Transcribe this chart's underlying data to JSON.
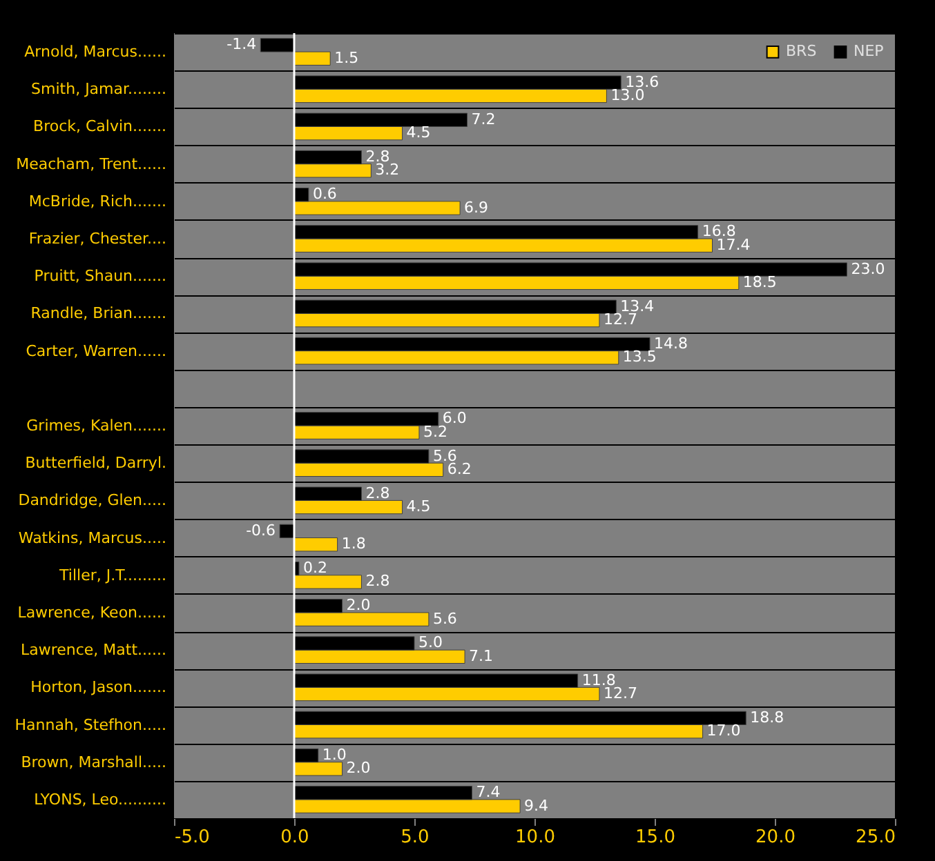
{
  "chart_data": {
    "type": "bar",
    "orientation": "horizontal",
    "categories": [
      "Arnold, Marcus......",
      "Smith, Jamar........",
      "Brock, Calvin.......",
      "Meacham, Trent......",
      "McBride, Rich.......",
      "Frazier, Chester....",
      "Pruitt, Shaun.......",
      "Randle, Brian.......",
      "Carter, Warren......",
      null,
      "Grimes, Kalen.......",
      "Butterfield, Darryl.",
      "Dandridge, Glen.....",
      "Watkins, Marcus.....",
      "Tiller, J.T.........",
      "Lawrence, Keon......",
      "Lawrence, Matt......",
      "Horton, Jason.......",
      "Hannah, Stefhon.....",
      "Brown, Marshall.....",
      "LYONS, Leo.........."
    ],
    "series": [
      {
        "name": "BRS",
        "color": "#ffcc00",
        "values": [
          1.5,
          13.0,
          4.5,
          3.2,
          6.9,
          17.4,
          18.5,
          12.7,
          13.5,
          null,
          5.2,
          6.2,
          4.5,
          1.8,
          2.8,
          5.6,
          7.1,
          12.7,
          17.0,
          2.0,
          9.4
        ],
        "value_labels": [
          "1.5",
          "13.0",
          "4.5",
          "3.2",
          "6.9",
          "17.4",
          "18.5",
          "12.7",
          "13.5",
          null,
          "5.2",
          "6.2",
          "4.5",
          "1.8",
          "2.8",
          "5.6",
          "7.1",
          "12.7",
          "17.0",
          "2.0",
          "9.4"
        ]
      },
      {
        "name": "NEP",
        "color": "#000000",
        "values": [
          -1.4,
          13.6,
          7.2,
          2.8,
          0.6,
          16.8,
          23.0,
          13.4,
          14.8,
          null,
          6.0,
          5.6,
          2.8,
          -0.6,
          0.2,
          2.0,
          5.0,
          11.8,
          18.8,
          1.0,
          7.4
        ],
        "value_labels": [
          "-1.4",
          "13.6",
          "7.2",
          "2.8",
          "0.6",
          "16.8",
          "23.0",
          "13.4",
          "14.8",
          null,
          "6.0",
          "5.6",
          "2.8",
          "-0.6",
          "0.2",
          "2.0",
          "5.0",
          "11.8",
          "18.8",
          "1.0",
          "7.4"
        ]
      }
    ],
    "xlim": [
      -5,
      25
    ],
    "xticks": [
      {
        "value": -5,
        "label": "-5.0"
      },
      {
        "value": 0,
        "label": "0.0"
      },
      {
        "value": 5,
        "label": "5.0"
      },
      {
        "value": 10,
        "label": "10.0"
      },
      {
        "value": 15,
        "label": "15.0"
      },
      {
        "value": 20,
        "label": "20.0"
      },
      {
        "value": 25,
        "label": "25.0"
      }
    ],
    "ref_lines": [
      {
        "axis": "x",
        "value": 0,
        "color": "#ffffff"
      }
    ],
    "grid": "y",
    "legend": "top right"
  }
}
